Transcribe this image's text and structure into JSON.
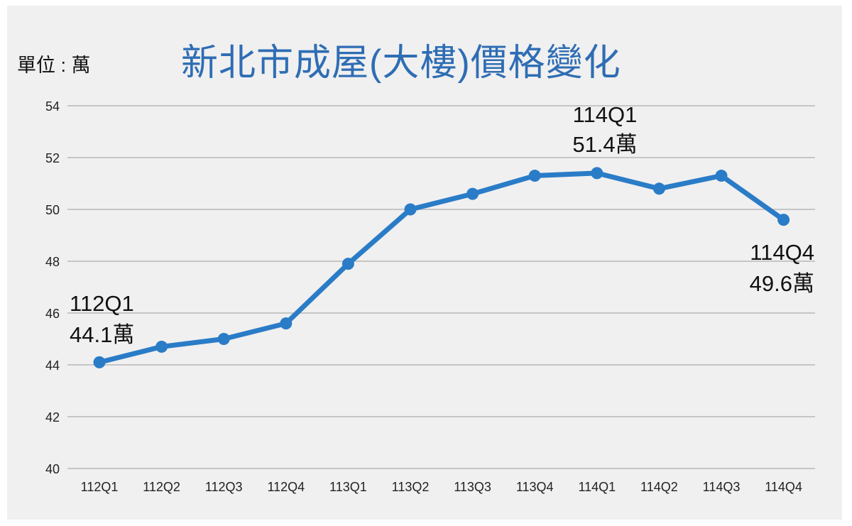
{
  "header": {
    "unit_label": "單位 : 萬",
    "title": "新北市成屋(大樓)價格變化"
  },
  "colors": {
    "line": "#2a7cc7",
    "title": "#2e6db4",
    "grid": "#b8b8b8",
    "background": "#f0f0f0"
  },
  "chart_data": {
    "type": "line",
    "title": "新北市成屋(大樓)價格變化",
    "xlabel": "",
    "ylabel": "單位 : 萬",
    "ylim": [
      40,
      54
    ],
    "yticks": [
      40,
      42,
      44,
      46,
      48,
      50,
      52,
      54
    ],
    "grid": true,
    "legend": "none",
    "categories": [
      "112Q1",
      "112Q2",
      "112Q3",
      "112Q4",
      "113Q1",
      "113Q2",
      "113Q3",
      "113Q4",
      "114Q1",
      "114Q2",
      "114Q3",
      "114Q4"
    ],
    "series": [
      {
        "name": "新北市成屋(大樓)價格",
        "values": [
          44.1,
          44.7,
          45.0,
          45.6,
          47.9,
          50.0,
          50.6,
          51.3,
          51.4,
          50.8,
          51.3,
          49.6
        ]
      }
    ],
    "annotations": [
      {
        "index": 0,
        "line1": "112Q1",
        "line2": "44.1萬"
      },
      {
        "index": 8,
        "line1": "114Q1",
        "line2": "51.4萬"
      },
      {
        "index": 11,
        "line1": "114Q4",
        "line2": "49.6萬"
      }
    ]
  }
}
